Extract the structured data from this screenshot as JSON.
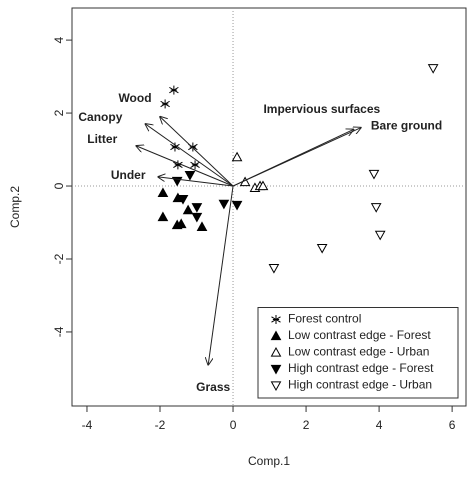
{
  "chart_data": {
    "type": "scatter",
    "x_label": "Comp.1",
    "y_label": "Comp.2",
    "xlim": [
      -4.41,
      6.38
    ],
    "ylim": [
      -6.03,
      4.88
    ],
    "xticks": [
      -4,
      -2,
      0,
      2,
      4,
      6
    ],
    "yticks": [
      -4,
      -2,
      0,
      2,
      4
    ],
    "zero_lines": true,
    "legend": "bottom right",
    "series": [
      {
        "name": "Forest control",
        "marker": "asterisk",
        "color": "#000000",
        "x": [
          -1.62,
          -1.86,
          -1.59,
          -1.1,
          -1.51,
          -1.04
        ],
        "values": [
          2.63,
          2.25,
          1.07,
          1.07,
          0.58,
          0.58
        ]
      },
      {
        "name": "Low contrast edge - Forest",
        "marker": "triangle-up-filled",
        "color": "#000000",
        "x": [
          -1.92,
          -1.51,
          -1.92,
          -1.53,
          -1.42,
          -1.23,
          -0.85
        ],
        "values": [
          -0.19,
          -0.33,
          -0.85,
          -1.07,
          -1.04,
          -0.66,
          -1.12
        ]
      },
      {
        "name": "Low contrast edge - Urban",
        "marker": "triangle-up-open",
        "color": "#000000",
        "x": [
          0.11,
          0.33,
          0.6,
          0.74,
          0.82
        ],
        "values": [
          0.79,
          0.11,
          -0.05,
          0.0,
          0.0
        ]
      },
      {
        "name": "High contrast edge - Forest",
        "marker": "triangle-down-filled",
        "color": "#000000",
        "x": [
          -1.53,
          -1.18,
          -1.37,
          -0.99,
          -0.99,
          -0.25,
          0.11
        ],
        "values": [
          0.14,
          0.3,
          -0.36,
          -0.58,
          -0.85,
          -0.49,
          -0.52
        ]
      },
      {
        "name": "High contrast edge - Urban",
        "marker": "triangle-down-open",
        "color": "#000000",
        "x": [
          5.48,
          3.86,
          3.92,
          4.03,
          2.44,
          1.12
        ],
        "values": [
          3.23,
          0.33,
          -0.58,
          -1.34,
          -1.7,
          -2.25
        ]
      }
    ],
    "vectors": [
      {
        "name": "Wood",
        "x": -2.0,
        "y": 1.9
      },
      {
        "name": "Canopy",
        "x": -2.4,
        "y": 1.7
      },
      {
        "name": "Litter",
        "x": -2.65,
        "y": 1.1
      },
      {
        "name": "Under",
        "x": -2.05,
        "y": 0.25
      },
      {
        "name": "Impervious surfaces",
        "x": 3.5,
        "y": 1.6
      },
      {
        "name": "Bare ground",
        "x": 3.3,
        "y": 1.55
      },
      {
        "name": "Grass",
        "x": -0.68,
        "y": -4.9
      }
    ]
  }
}
